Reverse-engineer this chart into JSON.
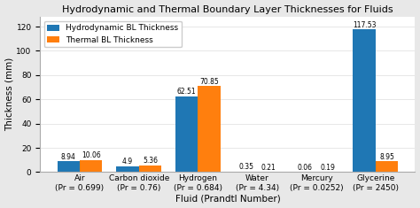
{
  "title": "Hydrodynamic and Thermal Boundary Layer Thicknesses for Fluids",
  "xlabel": "Fluid (Prandtl Number)",
  "ylabel": "Thickness (mm)",
  "fluids_line1": [
    "Air",
    "Carbon dioxide",
    "Hydrogen",
    "Water",
    "Mercury",
    "Glycerine"
  ],
  "fluids_line2": [
    "(Pr = 0.699)",
    "(Pr = 0.76)",
    "(Pr = 0.684)",
    "(Pr = 4.34)",
    "(Pr = 0.0252)",
    "(Pr = 2450)"
  ],
  "hydro_values": [
    8.94,
    4.9,
    62.51,
    0.35,
    0.06,
    117.53
  ],
  "thermal_values": [
    10.06,
    5.36,
    70.85,
    0.21,
    0.19,
    8.95
  ],
  "hydro_color": "#1f77b4",
  "thermal_color": "#ff7f0e",
  "hydro_label": "Hydrodynamic BL Thickness",
  "thermal_label": "Thermal BL Thickness",
  "ylim": [
    0,
    128
  ],
  "yticks": [
    0,
    20,
    40,
    60,
    80,
    100,
    120
  ],
  "bar_width": 0.38,
  "title_fontsize": 8.0,
  "label_fontsize": 7.5,
  "tick_fontsize": 6.5,
  "value_fontsize": 5.5,
  "legend_fontsize": 6.5,
  "plot_bg_color": "#ffffff",
  "fig_bg_color": "#e8e8e8"
}
